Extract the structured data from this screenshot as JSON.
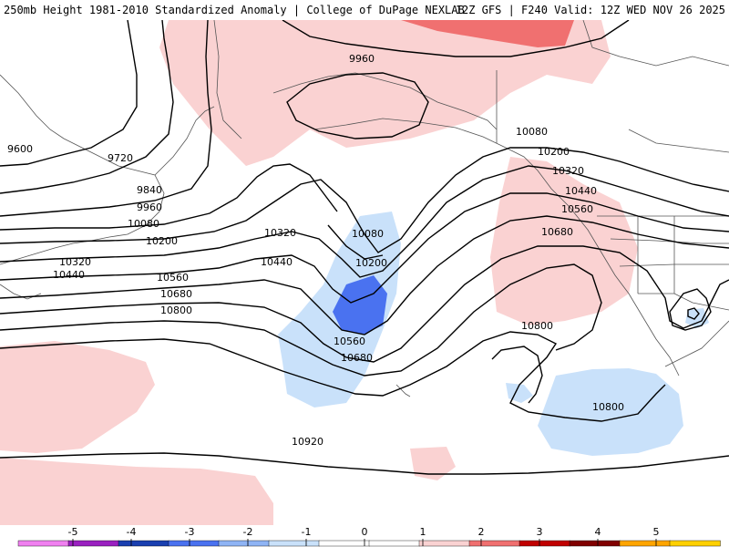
{
  "header": {
    "left_title": "250mb Height 1981-2010 Standardized Anomaly | College of DuPage NEXLAB",
    "right_title": "12Z GFS | F240 Valid: 12Z WED NOV 26 2025"
  },
  "colors": {
    "neg_light": "#c9e1fa",
    "neg_mid": "#4a72f0",
    "pos_light": "#fad2d2",
    "pos_mid": "#f07070",
    "contour": "#000000",
    "coast": "#555555"
  },
  "contours": [
    {
      "value": "9600"
    },
    {
      "value": "9720"
    },
    {
      "value": "9840"
    },
    {
      "value": "9960"
    },
    {
      "value": "9960"
    },
    {
      "value": "10080"
    },
    {
      "value": "10080"
    },
    {
      "value": "10080"
    },
    {
      "value": "10200"
    },
    {
      "value": "10200"
    },
    {
      "value": "10200"
    },
    {
      "value": "10320"
    },
    {
      "value": "10320"
    },
    {
      "value": "10320"
    },
    {
      "value": "10440"
    },
    {
      "value": "10440"
    },
    {
      "value": "10440"
    },
    {
      "value": "10560"
    },
    {
      "value": "10560"
    },
    {
      "value": "10560"
    },
    {
      "value": "10680"
    },
    {
      "value": "10680"
    },
    {
      "value": "10680"
    },
    {
      "value": "10800"
    },
    {
      "value": "10800"
    },
    {
      "value": "10800"
    },
    {
      "value": "10920"
    }
  ],
  "colorbar": {
    "ticks": [
      "-5",
      "-4",
      "-3",
      "-2",
      "-1",
      "0",
      "1",
      "2",
      "3",
      "4",
      "5"
    ],
    "segments": [
      "#f080f0",
      "#9a20c0",
      "#1a3fb0",
      "#4a72f0",
      "#8fb4f5",
      "#c9e1fa",
      "#ffffff",
      "#ffffff",
      "#fad2d2",
      "#f07070",
      "#c00000",
      "#800000",
      "#ffa500",
      "#ffd000"
    ]
  }
}
